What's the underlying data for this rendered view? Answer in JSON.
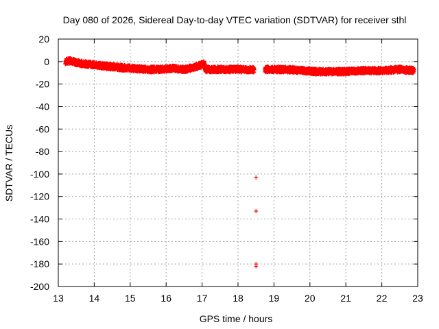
{
  "chart_data": {
    "type": "scatter",
    "title": "Day 080 of 2026, Sidereal Day-to-day VTEC variation (SDTVAR) for receiver sthl",
    "xlabel": "GPS time / hours",
    "ylabel": "SDTVAR / TECUs",
    "xlim": [
      13,
      23
    ],
    "ylim": [
      -200,
      20
    ],
    "xticks": [
      13,
      14,
      15,
      16,
      17,
      18,
      19,
      20,
      21,
      22,
      23
    ],
    "yticks": [
      20,
      0,
      -20,
      -40,
      -60,
      -80,
      -100,
      -120,
      -140,
      -160,
      -180,
      -200
    ],
    "grid": true,
    "marker": "+",
    "color": "#ff0000",
    "series": [
      {
        "name": "sthl",
        "band": [
          {
            "x": 13.2,
            "y": 0
          },
          {
            "x": 13.35,
            "y": 1
          },
          {
            "x": 13.5,
            "y": -1
          },
          {
            "x": 13.75,
            "y": -2
          },
          {
            "x": 14.0,
            "y": -3
          },
          {
            "x": 14.3,
            "y": -4
          },
          {
            "x": 14.6,
            "y": -5
          },
          {
            "x": 15.0,
            "y": -6
          },
          {
            "x": 15.5,
            "y": -7
          },
          {
            "x": 15.8,
            "y": -7
          },
          {
            "x": 16.2,
            "y": -6
          },
          {
            "x": 16.5,
            "y": -7
          },
          {
            "x": 16.8,
            "y": -5
          },
          {
            "x": 17.05,
            "y": -2
          },
          {
            "x": 17.1,
            "y": -7
          },
          {
            "x": 17.5,
            "y": -7
          },
          {
            "x": 18.0,
            "y": -7
          },
          {
            "x": 18.4,
            "y": -7
          },
          {
            "x": 18.8,
            "y": -7
          },
          {
            "x": 19.3,
            "y": -7
          },
          {
            "x": 19.8,
            "y": -8
          },
          {
            "x": 20.2,
            "y": -9
          },
          {
            "x": 20.6,
            "y": -9
          },
          {
            "x": 21.0,
            "y": -9
          },
          {
            "x": 21.5,
            "y": -8
          },
          {
            "x": 22.0,
            "y": -8
          },
          {
            "x": 22.5,
            "y": -7
          },
          {
            "x": 22.9,
            "y": -8
          }
        ],
        "outliers": [
          {
            "x": 18.5,
            "y": -103
          },
          {
            "x": 18.5,
            "y": -133
          },
          {
            "x": 18.5,
            "y": -180
          },
          {
            "x": 18.5,
            "y": -182
          }
        ]
      }
    ]
  }
}
